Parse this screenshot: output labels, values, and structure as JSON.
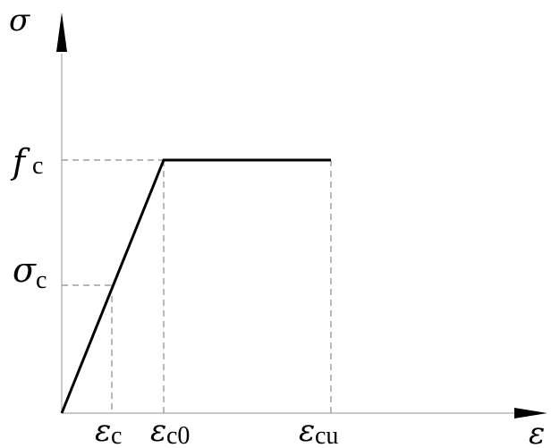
{
  "diagram": {
    "axes": {
      "y_symbol": "σ",
      "x_symbol": "ε"
    },
    "y_labels": [
      {
        "symbol": "f",
        "subscript": "c"
      },
      {
        "symbol": "σ",
        "subscript": "c"
      }
    ],
    "x_labels": [
      {
        "symbol": "ε",
        "subscript": "c"
      },
      {
        "symbol": "ε",
        "subscript": "c0"
      },
      {
        "symbol": "ε",
        "subscript": "cu"
      }
    ]
  }
}
